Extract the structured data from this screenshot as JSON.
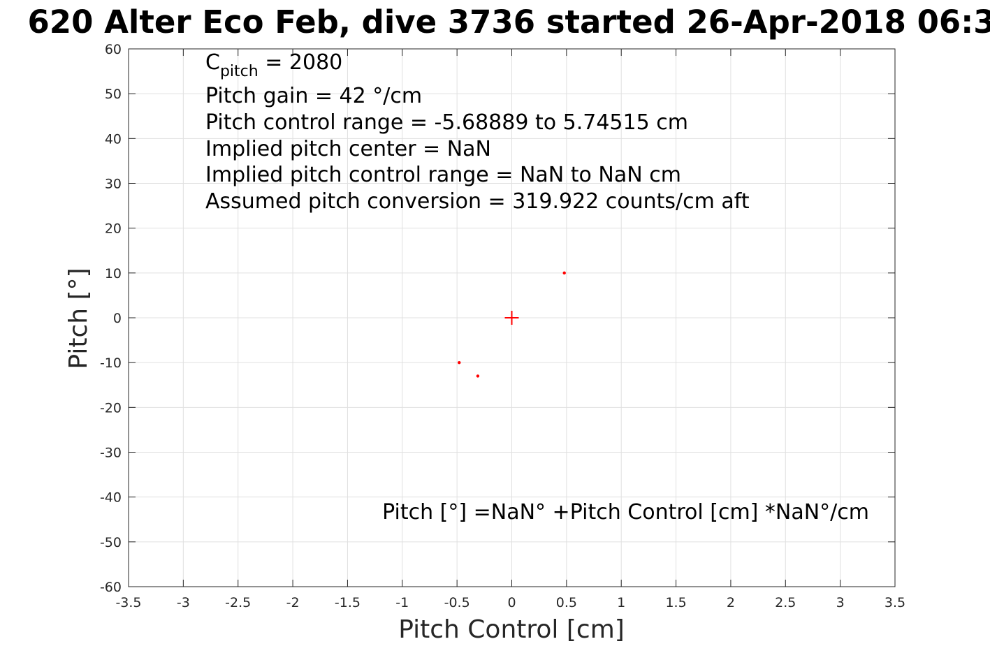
{
  "chart_data": {
    "type": "scatter",
    "title": "620 Alter Eco Feb, dive 3736 started 26-Apr-2018 06:3",
    "xlabel": "Pitch Control [cm]",
    "ylabel": "Pitch [°]",
    "xlim": [
      -3.5,
      3.5
    ],
    "ylim": [
      -60,
      60
    ],
    "x_ticks": [
      "-3.5",
      "-3",
      "-2.5",
      "-2",
      "-1.5",
      "-1",
      "-0.5",
      "0",
      "0.5",
      "1",
      "1.5",
      "2",
      "2.5",
      "3",
      "3.5"
    ],
    "y_ticks": [
      "60",
      "50",
      "40",
      "30",
      "20",
      "10",
      "0",
      "-10",
      "-20",
      "-30",
      "-40",
      "-50",
      "-60"
    ],
    "grid": true,
    "color": "#ff0000",
    "series": [
      {
        "marker": "dot",
        "x": [
          0.48,
          -0.48,
          -0.31
        ],
        "y": [
          10,
          -10,
          -13
        ]
      },
      {
        "marker": "plus",
        "x": [
          0
        ],
        "y": [
          0
        ]
      }
    ],
    "annotations": {
      "c_pitch_prefix": "C",
      "c_pitch_sub": "pitch",
      "c_pitch_value": " = 2080",
      "lines": [
        "Pitch gain = 42 °/cm",
        "Pitch control range = -5.68889 to 5.74515 cm",
        "Implied pitch center = NaN",
        "Implied pitch control range = NaN to NaN cm",
        "Assumed pitch conversion = 319.922 counts/cm aft"
      ],
      "fit_equation": "Pitch [°] =NaN° +Pitch Control [cm] *NaN°/cm"
    }
  }
}
